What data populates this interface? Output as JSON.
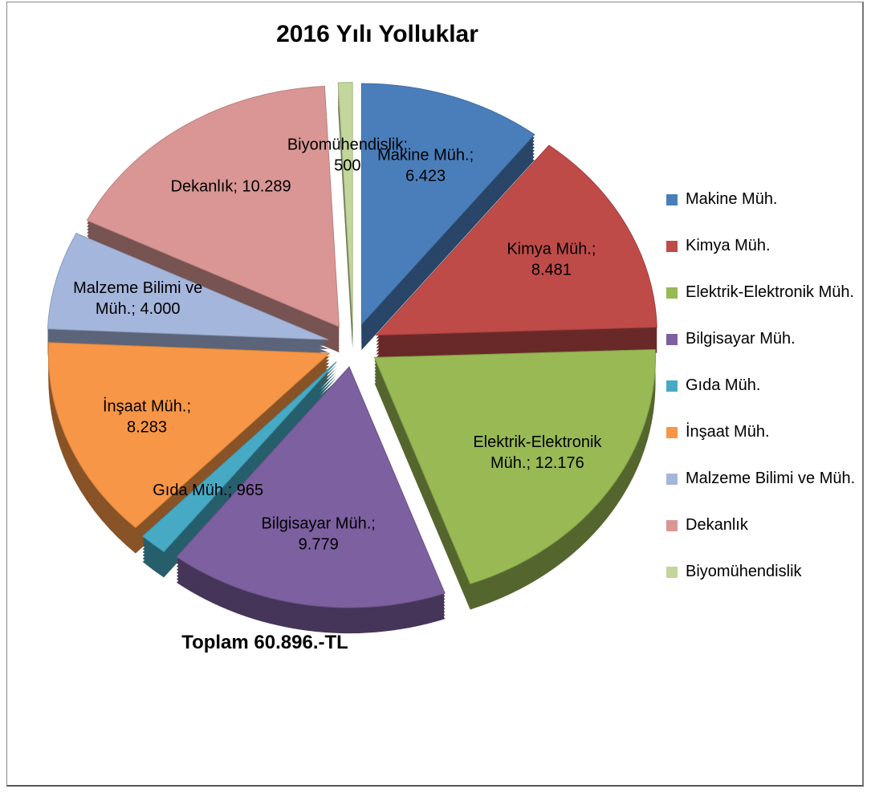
{
  "chart_data": {
    "type": "pie",
    "title": "2016 Yılı Yolluklar",
    "annotation": "Toplam 60.896.-TL",
    "categories": [
      "Makine Müh.",
      "Kimya Müh.",
      "Elektrik-Elektronik Müh.",
      "Bilgisayar Müh.",
      "Gıda Müh.",
      "İnşaat Müh.",
      "Malzeme Bilimi ve Müh.",
      "Dekanlık",
      "Biyomühendislik"
    ],
    "values": [
      6423,
      8481,
      12176,
      9779,
      965,
      8283,
      4000,
      10289,
      500
    ],
    "value_labels": [
      "Makine Müh.;\n6.423",
      "Kimya Müh.;\n8.481",
      "Elektrik-Elektronik\nMüh.; 12.176",
      "Bilgisayar Müh.;\n9.779",
      "Gıda Müh.; 965",
      "İnşaat Müh.;\n8.283",
      "Malzeme Bilimi ve\nMüh.; 4.000",
      "Dekanlık; 10.289",
      "Biyomühendislik;\n500"
    ],
    "colors": [
      "#4a7ebb",
      "#be4b48",
      "#98b954",
      "#7d60a0",
      "#46aac5",
      "#f79646",
      "#a5b6dc",
      "#d99694",
      "#c3d69b"
    ],
    "legend": "right"
  }
}
